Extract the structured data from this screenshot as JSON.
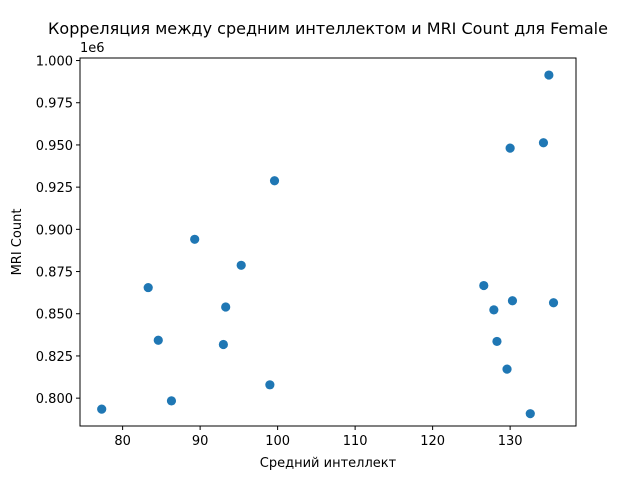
{
  "chart_data": {
    "type": "scatter",
    "title": "Корреляция между средним интеллектом и MRI Count для Female",
    "xlabel": "Средний интеллект",
    "ylabel": "MRI Count",
    "y_offset_label": "1e6",
    "xlim": [
      74.5,
      138.5
    ],
    "ylim": [
      0.7835,
      1.0015
    ],
    "x_ticks": [
      80,
      90,
      100,
      110,
      120,
      130
    ],
    "x_tick_labels": [
      "80",
      "90",
      "100",
      "110",
      "120",
      "130"
    ],
    "y_ticks": [
      0.8,
      0.825,
      0.85,
      0.875,
      0.9,
      0.925,
      0.95,
      0.975,
      1.0
    ],
    "y_tick_labels": [
      "0.800",
      "0.825",
      "0.850",
      "0.875",
      "0.900",
      "0.925",
      "0.950",
      "0.975",
      "1.000"
    ],
    "grid": false,
    "marker_color": "#1f77b4",
    "points": [
      {
        "x": 77.3,
        "y": 0.7935
      },
      {
        "x": 83.3,
        "y": 0.8655
      },
      {
        "x": 84.6,
        "y": 0.8343
      },
      {
        "x": 86.3,
        "y": 0.7984
      },
      {
        "x": 89.3,
        "y": 0.8941
      },
      {
        "x": 93.0,
        "y": 0.8318
      },
      {
        "x": 93.3,
        "y": 0.854
      },
      {
        "x": 95.3,
        "y": 0.8787
      },
      {
        "x": 99.0,
        "y": 0.8079
      },
      {
        "x": 99.6,
        "y": 0.9288
      },
      {
        "x": 126.6,
        "y": 0.8667
      },
      {
        "x": 127.9,
        "y": 0.8523
      },
      {
        "x": 128.3,
        "y": 0.8336
      },
      {
        "x": 129.6,
        "y": 0.8172
      },
      {
        "x": 130.0,
        "y": 0.9481
      },
      {
        "x": 130.3,
        "y": 0.8577
      },
      {
        "x": 132.6,
        "y": 0.7908
      },
      {
        "x": 134.3,
        "y": 0.9513
      },
      {
        "x": 135.0,
        "y": 0.9914
      },
      {
        "x": 135.6,
        "y": 0.8565
      }
    ]
  }
}
